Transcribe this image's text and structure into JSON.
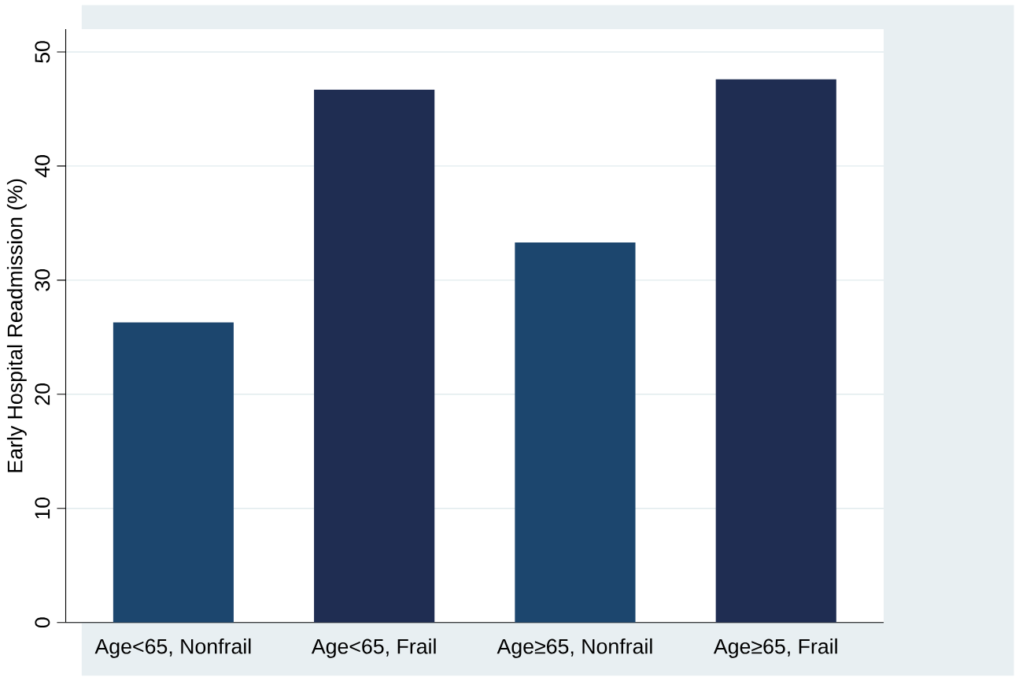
{
  "chart_data": {
    "type": "bar",
    "ylabel": "Early Hospital Readmission (%)",
    "categories": [
      "Age<65, Nonfrail",
      "Age<65, Frail",
      "Age≥65, Nonfrail",
      "Age≥65, Frail"
    ],
    "values": [
      26.3,
      46.7,
      33.3,
      47.6
    ],
    "colors": [
      "#1c466e",
      "#1f2d52",
      "#1c466e",
      "#1f2d52"
    ],
    "ylim": [
      0,
      52
    ],
    "yticks": [
      0,
      10,
      20,
      30,
      40,
      50
    ],
    "grid": "y"
  }
}
